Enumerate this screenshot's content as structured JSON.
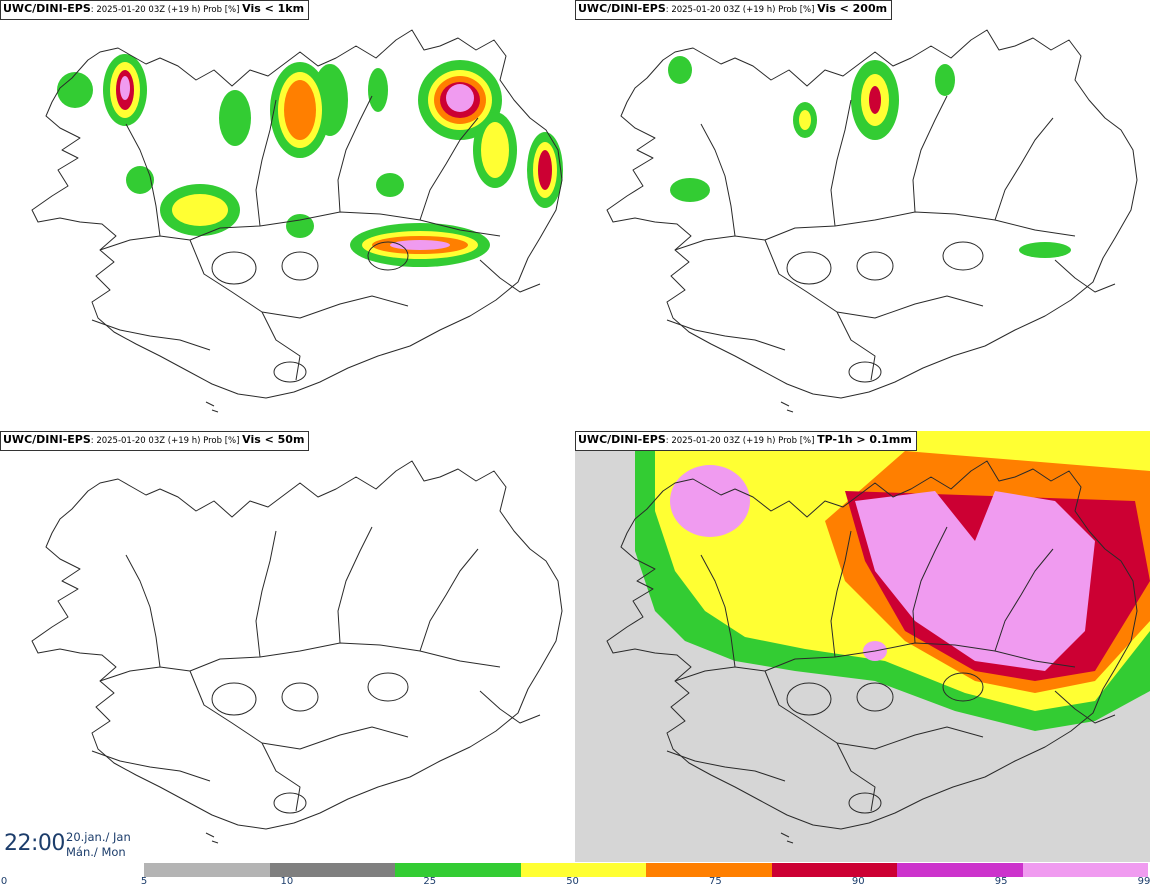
{
  "panels": [
    {
      "source": "UWC/DINI-EPS",
      "meta": ": 2025-01-20 03Z (+19 h) Prob [%] ",
      "variable": "Vis < 1km"
    },
    {
      "source": "UWC/DINI-EPS",
      "meta": ": 2025-01-20 03Z (+19 h) Prob [%] ",
      "variable": "Vis < 200m"
    },
    {
      "source": "UWC/DINI-EPS",
      "meta": ": 2025-01-20 03Z (+19 h) Prob [%] ",
      "variable": "Vis < 50m"
    },
    {
      "source": "UWC/DINI-EPS",
      "meta": ": 2025-01-20 03Z (+19 h) Prob [%] ",
      "variable": "TP-1h > 0.1mm"
    }
  ],
  "valid_time": {
    "time": "22:00",
    "date_line1": "20.jan./ Jan",
    "date_line2": "Mán./ Mon"
  },
  "colorbar": {
    "ticks": [
      "0",
      "5",
      "10",
      "25",
      "50",
      "75",
      "90",
      "95",
      "99"
    ],
    "colors": [
      "#ffffff",
      "#b4b4b4",
      "#7f7f7f",
      "#33cc33",
      "#ffff33",
      "#ff7f00",
      "#cc0033",
      "#cc33cc",
      "#f09bf0"
    ]
  }
}
